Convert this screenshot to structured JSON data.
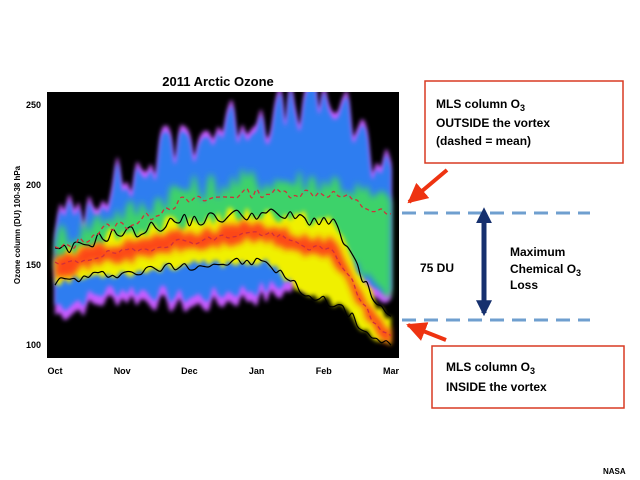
{
  "chart_data": {
    "type": "heatmap",
    "title": "2011 Arctic Ozone",
    "ylabel": "Ozone column (DU)  100-38 hPa",
    "ylim": [
      92,
      258
    ],
    "y_ticks": [
      100,
      150,
      200,
      250
    ],
    "x_tick_labels": [
      "Oct",
      "Nov",
      "Dec",
      "Jan",
      "Feb",
      "Mar"
    ],
    "background_color": "#000000",
    "colors": {
      "outside_vortex": "#2f7df0",
      "transition": "#3cd26a",
      "inside_vortex": "#f0f000",
      "high_density": "#ff2a1a",
      "edge": "#c85cff",
      "callout_border": "#d93a22",
      "arrow_red": "#ee3311",
      "loss_arrow": "#16306e",
      "dashed_reference": "#6f9fcf"
    },
    "inside_vortex_band": {
      "x": [
        "Oct",
        "Nov",
        "Dec",
        "Jan",
        "Feb",
        "Mar"
      ],
      "center": [
        150,
        158,
        165,
        170,
        160,
        106
      ],
      "lower": [
        140,
        145,
        150,
        152,
        128,
        100
      ],
      "upper": [
        158,
        170,
        178,
        182,
        178,
        118
      ]
    },
    "outside_vortex_band": {
      "x": [
        "Oct",
        "Nov",
        "Dec",
        "Jan",
        "Feb",
        "Mar"
      ],
      "mean": [
        160,
        175,
        190,
        195,
        195,
        182
      ],
      "lower": [
        125,
        135,
        130,
        135,
        145,
        135
      ],
      "upper": [
        175,
        200,
        228,
        240,
        250,
        210
      ]
    },
    "reference_levels": {
      "outside_mean": 180,
      "inside_min": 105
    },
    "max_chemical_loss": 75
  },
  "annotations": {
    "outside_callout": {
      "line1_prefix": "MLS column O",
      "line1_sub": "3",
      "line2": "OUTSIDE the vortex",
      "line3": "(dashed = mean)"
    },
    "inside_callout": {
      "line1_prefix": "MLS column O",
      "line1_sub": "3",
      "line2": "INSIDE the vortex"
    },
    "loss_label": {
      "line1": "Maximum",
      "line2_prefix": "Chemical O",
      "line2_sub": "3",
      "line3": "Loss"
    },
    "du_label": "75 DU"
  },
  "credit": "NASA"
}
